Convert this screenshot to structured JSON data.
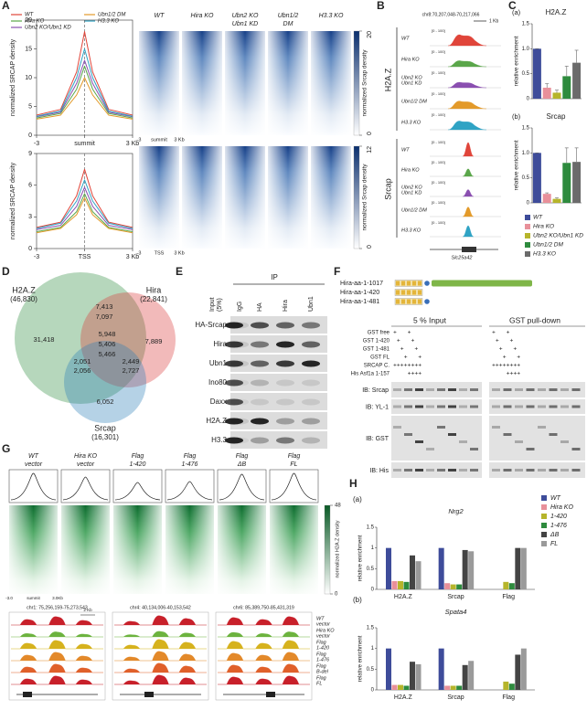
{
  "letters": [
    "A",
    "B",
    "C",
    "D",
    "E",
    "F",
    "G",
    "H"
  ],
  "A": {
    "series": [
      {
        "name": "WT",
        "color": "#e0453a"
      },
      {
        "name": "Hira KO",
        "color": "#5aa64a"
      },
      {
        "name": "Ubn2 KO/Ubn1 KD",
        "color": "#8a4fb0"
      },
      {
        "name": "Ubn1/2 DM",
        "color": "#e39a2a"
      },
      {
        "name": "H3.3 KO",
        "color": "#2fa3c4"
      }
    ],
    "profiles": [
      {
        "ylabel": "normalized SRCAP density",
        "xlim": [
          -3,
          3
        ],
        "ylim": [
          0,
          20
        ],
        "yticks": [
          0,
          5,
          10,
          15,
          20
        ],
        "xticks": [
          -3,
          {
            "value": 0,
            "label": "summit"
          },
          {
            "value": 3,
            "label": "3 Kb"
          }
        ],
        "x": [
          -3,
          -1.5,
          -0.5,
          0,
          0.5,
          1.5,
          3
        ],
        "values": [
          [
            3.5,
            4.5,
            11,
            18,
            11,
            4.5,
            3.5
          ],
          [
            3,
            3.8,
            8,
            12,
            8,
            3.8,
            3
          ],
          [
            3.2,
            4,
            9,
            13,
            9,
            4,
            3.2
          ],
          [
            2.8,
            3.5,
            7,
            10,
            7,
            3.5,
            2.8
          ],
          [
            3.3,
            4.2,
            10,
            15,
            10,
            4.2,
            3.3
          ]
        ]
      },
      {
        "ylabel": "normalized SRCAP density",
        "xlim": [
          -3,
          3
        ],
        "ylim": [
          0,
          9
        ],
        "yticks": [
          0,
          3,
          6,
          9
        ],
        "xticks": [
          -3,
          {
            "value": 0,
            "label": "TSS"
          },
          {
            "value": 3,
            "label": "3 Kb"
          }
        ],
        "x": [
          -3,
          -1.5,
          -0.5,
          0,
          0.5,
          1.5,
          3
        ],
        "values": [
          [
            2,
            2.5,
            5,
            7.5,
            5,
            2.5,
            2
          ],
          [
            1.6,
            2,
            3.5,
            5.2,
            3.5,
            2,
            1.6
          ],
          [
            1.8,
            2.2,
            4,
            5.8,
            4,
            2.2,
            1.8
          ],
          [
            1.5,
            1.9,
            3.2,
            4.8,
            3.2,
            1.9,
            1.5
          ],
          [
            1.9,
            2.4,
            4.5,
            6.5,
            4.5,
            2.4,
            1.9
          ]
        ]
      }
    ],
    "heatmaps": {
      "columns": [
        [
          "WT"
        ],
        [
          "Hira KO"
        ],
        [
          "Ubn2 KO",
          "Ubn1 KD"
        ],
        [
          "Ubn1/2",
          "DM"
        ],
        [
          "H3.3 KO"
        ]
      ],
      "colorbar_label": "normalized Srcap density",
      "panels": [
        {
          "xticks": [
            "-3",
            "summit",
            "3 Kb"
          ],
          "clim": [
            0,
            20
          ],
          "ticks": [
            0,
            20
          ]
        },
        {
          "xticks": [
            "-3",
            "TSS",
            "3 Kb"
          ],
          "clim": [
            0,
            12
          ],
          "ticks": [
            0,
            12
          ]
        }
      ]
    }
  },
  "B": {
    "locus": "chr8:70,207,048-70,217,066",
    "scale": "1 Kb",
    "range": "[0 - 100]",
    "gene": "Slc25a42",
    "groups": [
      {
        "label": "H2A.Z",
        "rows": [
          [
            "WT"
          ],
          [
            "Hira KO"
          ],
          [
            "Ubn2 KO",
            "Ubn1 KD"
          ],
          [
            "Ubn1/2 DM"
          ],
          [
            "H3.3 KO"
          ]
        ]
      },
      {
        "label": "Srcap",
        "rows": [
          [
            "WT"
          ],
          [
            "Hira KO"
          ],
          [
            "Ubn2 KO",
            "Ubn1 KD"
          ],
          [
            "Ubn1/2 DM"
          ],
          [
            "H3.3 KO"
          ]
        ]
      }
    ]
  },
  "C": {
    "ylabel": "relative enrichment",
    "ylim": [
      0,
      1.5
    ],
    "yticks": [
      0,
      0.5,
      {
        "value": 1,
        "label": "1.0"
      },
      1.5
    ],
    "series": [
      {
        "name": "WT",
        "color": "#3e4c9a"
      },
      {
        "name": "Hira KO",
        "color": "#e8909a"
      },
      {
        "name": "Ubn2 KO/Ubn1 KD",
        "color": "#b6b52b"
      },
      {
        "name": "Ubn1/2 DM",
        "color": "#2e8b3e"
      },
      {
        "name": "H3.3 KO",
        "color": "#6b6b6b"
      }
    ],
    "charts": [
      {
        "label": "(a)",
        "title": "H2A.Z",
        "values": [
          1,
          0.22,
          0.12,
          0.45,
          0.72
        ],
        "errors": [
          0,
          0.08,
          0.05,
          0.2,
          0.25
        ]
      },
      {
        "label": "(b)",
        "title": "Srcap",
        "values": [
          1,
          0.18,
          0.08,
          0.8,
          0.82
        ],
        "errors": [
          0,
          0.02,
          0.02,
          0.3,
          0.28
        ]
      }
    ]
  },
  "D": {
    "sets": [
      {
        "label": "H2A.Z",
        "count": "(46,830)",
        "color": "#2e8b3e"
      },
      {
        "label": "Hira",
        "count": "(22,841)",
        "color": "#d9383a"
      },
      {
        "label": "Srcap",
        "count": "(16,301)",
        "color": "#2c7fb8"
      }
    ],
    "regions": [
      {
        "text": "31,418",
        "color": "#2e8b3e"
      },
      {
        "text": "7,413",
        "color": "#2e8b3e"
      },
      {
        "text": "7,097",
        "color": "#d9383a"
      },
      {
        "text": "7,889",
        "color": "#d9383a"
      },
      {
        "text": "5,948",
        "color": "#2e8b3e"
      },
      {
        "text": "5,406",
        "color": "#d9383a"
      },
      {
        "text": "5,466",
        "color": "#2c7fb8"
      },
      {
        "text": "2,051",
        "color": "#2e8b3e"
      },
      {
        "text": "2,056",
        "color": "#2c7fb8"
      },
      {
        "text": "2,449",
        "color": "#d9383a"
      },
      {
        "text": "2,727",
        "color": "#2c7fb8"
      },
      {
        "text": "6,052",
        "color": "#2c7fb8"
      }
    ]
  },
  "E": {
    "ip": "IP",
    "columns": [
      [
        "Input",
        "(5%)"
      ],
      [
        "IgG"
      ],
      [
        "HA"
      ],
      [
        "Hira"
      ],
      [
        "Ubn1"
      ]
    ],
    "rows": [
      "HA-Srcap",
      "Hira",
      "Ubn1",
      "Ino80",
      "Daxx",
      "H2A.Z",
      "H3.3"
    ]
  },
  "F": {
    "constructs": [
      "Hira-aa-1-1017",
      "Hira-aa-1-420",
      "Hira-aa-1-481"
    ],
    "input": "5 % Input",
    "pulldown": "GST pull-down",
    "conditions": [
      {
        "label": "GST free",
        "input": "+   +   ",
        "pulldown": "+   +   "
      },
      {
        "label": "GST 1-420",
        "input": " +   +  ",
        "pulldown": " +   +  "
      },
      {
        "label": "GST 1-481",
        "input": "  +   + ",
        "pulldown": "  +   + "
      },
      {
        "label": "GST FL",
        "input": "   +   +",
        "pulldown": "   +   +"
      },
      {
        "label": "SRCAP C.",
        "input": "++++++++",
        "pulldown": "++++++++"
      },
      {
        "label": "His Asf1a 1-157",
        "input": "    ++++",
        "pulldown": "    ++++"
      }
    ],
    "blots": [
      "IB: Srcap",
      "IB: YL-1",
      "IB: GST",
      "IB: His"
    ]
  },
  "G": {
    "columns": [
      [
        "WT",
        "vector"
      ],
      [
        "Hira KO",
        "vector"
      ],
      [
        "Flag",
        "1-420"
      ],
      [
        "Flag",
        "1-476"
      ],
      [
        "Flag",
        "ΔB"
      ],
      [
        "Flag",
        "FL"
      ]
    ],
    "colorbar_label": "normalized H2A.Z density",
    "clim": [
      0,
      48
    ],
    "ticks": [
      0,
      48
    ],
    "xticks": [
      "-3.0",
      "summit",
      "3.0Kb"
    ],
    "loci": [
      "chr1: 75,256,159-75,273,543",
      "chr4: 40,134,006-40,153,542",
      "chr6: 85,389,750-85,431,319"
    ],
    "scale": "2 Kb",
    "tracks": [
      [
        "WT",
        "vector"
      ],
      [
        "Hira KO",
        "vector"
      ],
      [
        "Flag",
        "1-420"
      ],
      [
        "Flag",
        "1-476"
      ],
      [
        "Flag",
        "B-del"
      ],
      [
        "Flag",
        "FL"
      ]
    ]
  },
  "H": {
    "ylabel": "relative enrichment",
    "ylim": [
      0,
      1.5
    ],
    "yticks": [
      0,
      0.5,
      1,
      1.5
    ],
    "groups": [
      "H2A.Z",
      "Srcap",
      "Flag"
    ],
    "series": [
      {
        "name": "WT",
        "color": "#3e4c9a"
      },
      {
        "name": "Hira KO",
        "color": "#e8909a"
      },
      {
        "name": "1-420",
        "color": "#b6b52b"
      },
      {
        "name": "1-476",
        "color": "#2e8b3e"
      },
      {
        "name": "ΔB",
        "color": "#444444"
      },
      {
        "name": "FL",
        "color": "#9a9a9a"
      }
    ],
    "charts": [
      {
        "label": "(a)",
        "title": "Nrg2",
        "values": [
          [
            1,
            0.2,
            0.2,
            0.18,
            0.82,
            0.68
          ],
          [
            1,
            0.15,
            0.12,
            0.12,
            0.95,
            0.92
          ],
          [
            0,
            0,
            0.18,
            0.15,
            1,
            1
          ]
        ]
      },
      {
        "label": "(b)",
        "title": "Spata4",
        "values": [
          [
            1,
            0.12,
            0.12,
            0.1,
            0.68,
            0.62
          ],
          [
            1,
            0.1,
            0.1,
            0.1,
            0.6,
            0.7
          ],
          [
            0,
            0,
            0.2,
            0.15,
            0.85,
            1
          ]
        ]
      }
    ]
  }
}
